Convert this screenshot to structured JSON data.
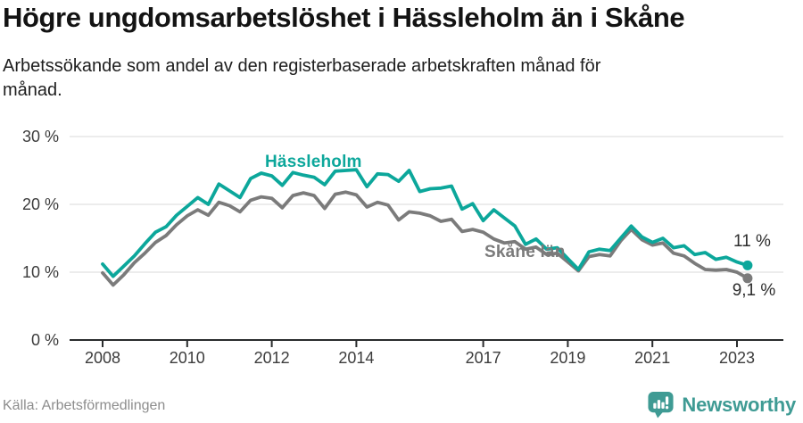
{
  "header": {
    "title": "Högre ungdomsarbetslöshet i Hässleholm än i Skåne",
    "subtitle_lines": [
      "Arbetssökande som andel av den registerbaserade arbetskraften månad för",
      "månad."
    ]
  },
  "footer": {
    "source": "Källa: Arbetsförmedlingen",
    "brand": "Newsworthy",
    "brand_color": "#3f9b94",
    "logo_icon": "newsworthy-speech-bubble-bar-chart-icon"
  },
  "chart_data": {
    "type": "line",
    "x_unit": "year (monthly unemployment share, quarterly sampled)",
    "xlim": [
      2008,
      2023.25
    ],
    "ylim": [
      0,
      30
    ],
    "xticks": [
      2008,
      2010,
      2012,
      2014,
      2017,
      2019,
      2021,
      2023
    ],
    "yticks": [
      0,
      10,
      20,
      30
    ],
    "ytick_suffix": " %",
    "grid": "horizontal",
    "legend_position": "inline-labels",
    "axis_color": "#2a2c2d",
    "grid_color": "#d9d9d9",
    "x": [
      2008,
      2008.25,
      2008.5,
      2008.75,
      2009,
      2009.25,
      2009.5,
      2009.75,
      2010,
      2010.25,
      2010.5,
      2010.75,
      2011,
      2011.25,
      2011.5,
      2011.75,
      2012,
      2012.25,
      2012.5,
      2012.75,
      2013,
      2013.25,
      2013.5,
      2013.75,
      2014,
      2014.25,
      2014.5,
      2014.75,
      2015,
      2015.25,
      2015.5,
      2015.75,
      2016,
      2016.25,
      2016.5,
      2016.75,
      2017,
      2017.25,
      2017.5,
      2017.75,
      2018,
      2018.25,
      2018.5,
      2018.75,
      2019,
      2019.25,
      2019.5,
      2019.75,
      2020,
      2020.25,
      2020.5,
      2020.75,
      2021,
      2021.25,
      2021.5,
      2021.75,
      2022,
      2022.25,
      2022.5,
      2022.75,
      2023,
      2023.25
    ],
    "series": [
      {
        "name": "Skåne län",
        "color": "#7b7b7b",
        "end_label": "9,1 %",
        "end_value": 9.1,
        "values": [
          9.9,
          8.1,
          9.6,
          11.4,
          12.8,
          14.4,
          15.4,
          17.0,
          18.3,
          19.2,
          18.4,
          20.3,
          19.8,
          18.9,
          20.6,
          21.1,
          20.9,
          19.5,
          21.3,
          21.7,
          21.3,
          19.4,
          21.5,
          21.8,
          21.4,
          19.6,
          20.3,
          19.9,
          17.7,
          18.9,
          18.7,
          18.3,
          17.5,
          17.8,
          16.0,
          16.3,
          15.9,
          14.9,
          14.3,
          14.5,
          13.4,
          13.7,
          12.6,
          12.8,
          11.5,
          10.2,
          12.3,
          12.6,
          12.4,
          14.6,
          16.3,
          14.8,
          14.0,
          14.3,
          12.8,
          12.4,
          11.3,
          10.4,
          10.3,
          10.4,
          10.0,
          9.1
        ]
      },
      {
        "name": "Hässleholm",
        "color": "#0ca79b",
        "end_label": "11 %",
        "end_value": 11,
        "values": [
          11.2,
          9.4,
          10.9,
          12.4,
          14.2,
          15.9,
          16.7,
          18.4,
          19.7,
          21.0,
          20.0,
          23.0,
          22.0,
          21.0,
          23.8,
          24.6,
          24.2,
          22.8,
          24.7,
          24.3,
          24.0,
          22.9,
          24.9,
          25.0,
          25.1,
          22.6,
          24.5,
          24.4,
          23.4,
          25.0,
          21.9,
          22.3,
          22.4,
          22.7,
          19.3,
          20.1,
          17.6,
          19.2,
          18.0,
          16.8,
          14.1,
          14.9,
          13.4,
          13.6,
          12.0,
          10.4,
          13.0,
          13.4,
          13.2,
          15.0,
          16.8,
          15.2,
          14.4,
          15.0,
          13.6,
          13.9,
          12.6,
          12.9,
          11.9,
          12.2,
          11.5,
          11.0
        ]
      }
    ]
  }
}
